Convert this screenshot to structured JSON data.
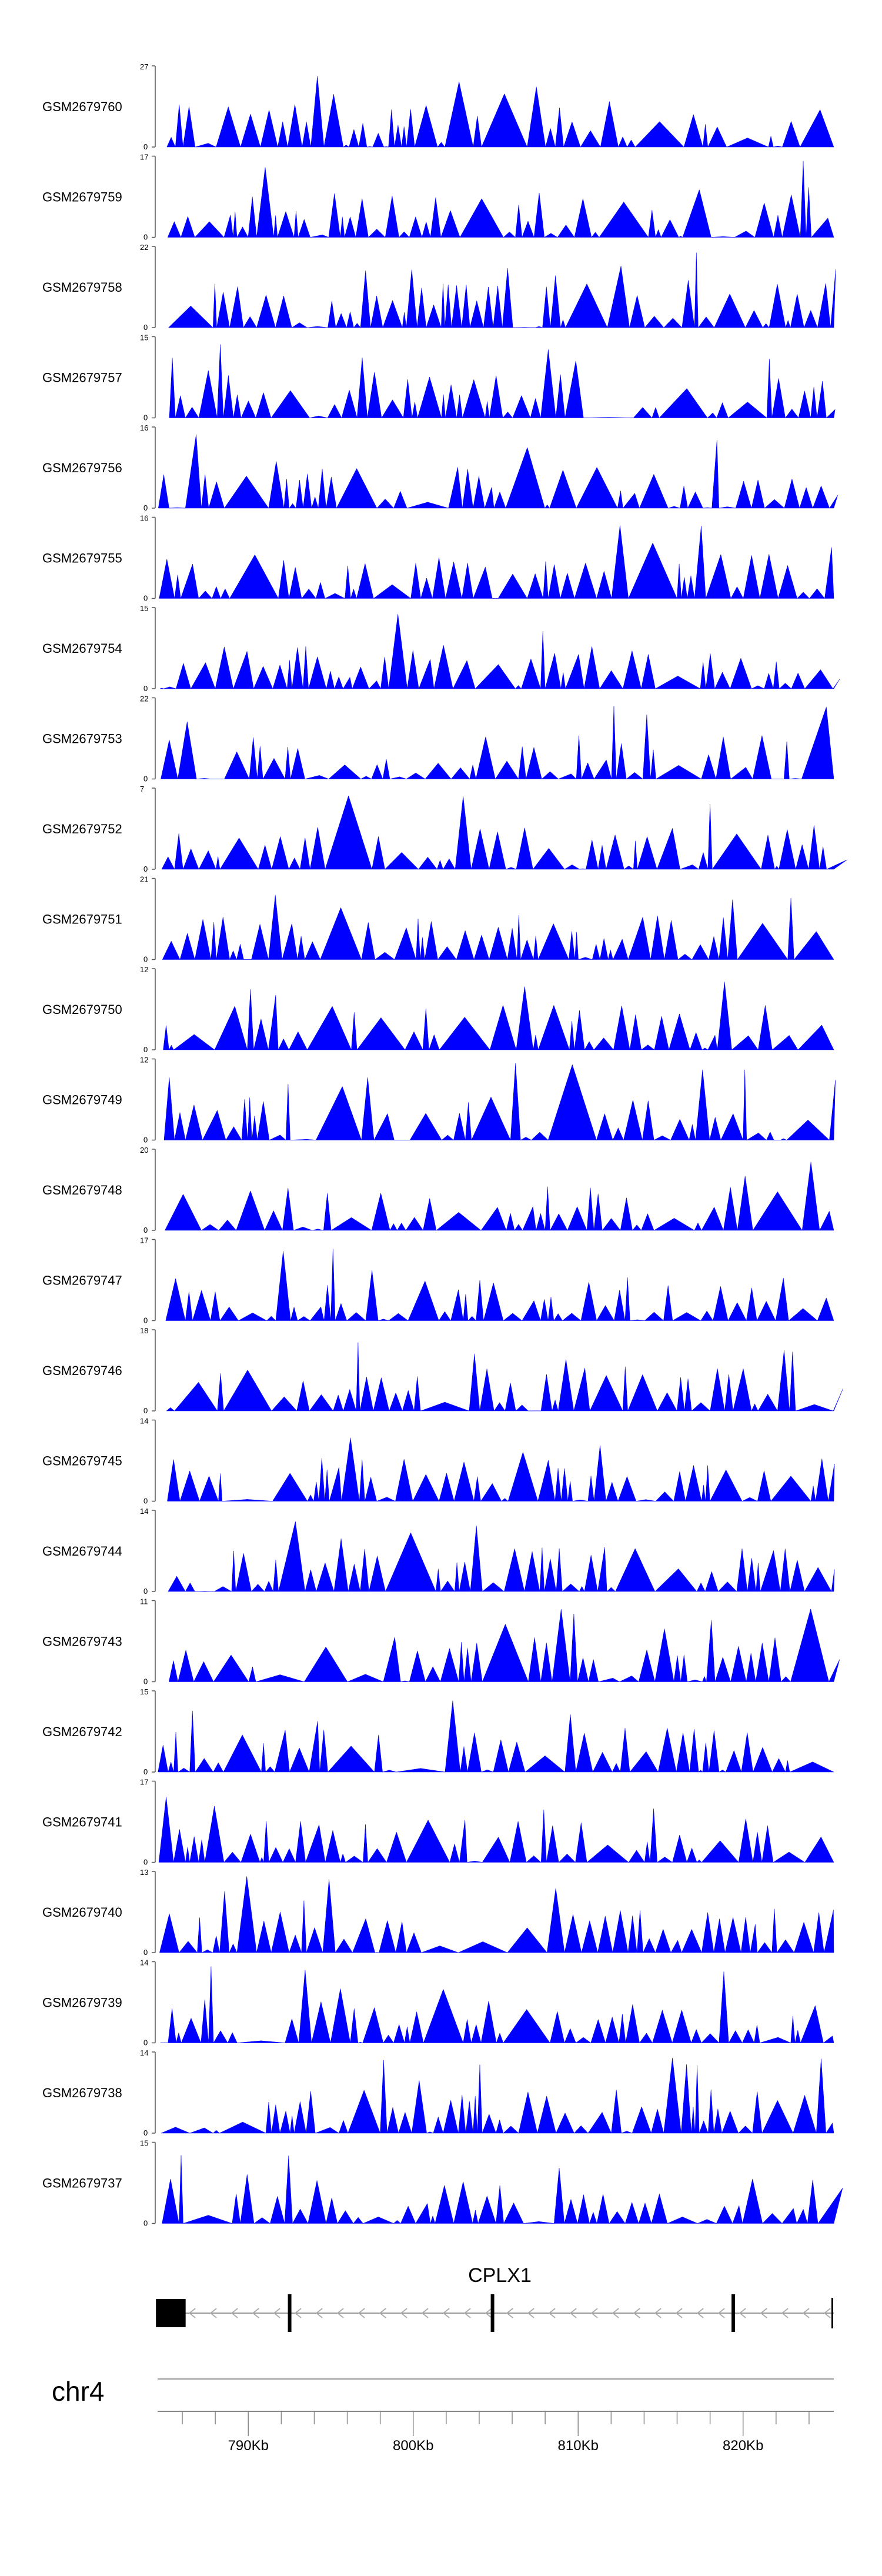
{
  "chart_data": {
    "type": "area",
    "title": "",
    "x_range": [
      784500,
      825500
    ],
    "x_unit": "bp",
    "tracks": [
      {
        "name": "GSM2679760",
        "ymax": 27
      },
      {
        "name": "GSM2679759",
        "ymax": 17
      },
      {
        "name": "GSM2679758",
        "ymax": 22
      },
      {
        "name": "GSM2679757",
        "ymax": 15
      },
      {
        "name": "GSM2679756",
        "ymax": 16
      },
      {
        "name": "GSM2679755",
        "ymax": 16
      },
      {
        "name": "GSM2679754",
        "ymax": 15
      },
      {
        "name": "GSM2679753",
        "ymax": 22
      },
      {
        "name": "GSM2679752",
        "ymax": 7
      },
      {
        "name": "GSM2679751",
        "ymax": 21
      },
      {
        "name": "GSM2679750",
        "ymax": 12
      },
      {
        "name": "GSM2679749",
        "ymax": 12
      },
      {
        "name": "GSM2679748",
        "ymax": 20
      },
      {
        "name": "GSM2679747",
        "ymax": 17
      },
      {
        "name": "GSM2679746",
        "ymax": 18
      },
      {
        "name": "GSM2679745",
        "ymax": 14
      },
      {
        "name": "GSM2679744",
        "ymax": 14
      },
      {
        "name": "GSM2679743",
        "ymax": 11
      },
      {
        "name": "GSM2679742",
        "ymax": 15
      },
      {
        "name": "GSM2679741",
        "ymax": 17
      },
      {
        "name": "GSM2679740",
        "ymax": 13
      },
      {
        "name": "GSM2679739",
        "ymax": 14
      },
      {
        "name": "GSM2679738",
        "ymax": 14
      },
      {
        "name": "GSM2679737",
        "ymax": 15
      }
    ],
    "y_min_label": "0",
    "gene": {
      "name": "CPLX1",
      "strand": "-",
      "start": 784400,
      "end": 825500,
      "exons": [
        [
          784400,
          786200
        ],
        [
          792400,
          792600
        ],
        [
          804700,
          804900
        ],
        [
          819300,
          819500
        ]
      ]
    },
    "chromosome": "chr4",
    "axis_ticks": [
      {
        "pos": 790000,
        "label": "790Kb"
      },
      {
        "pos": 800000,
        "label": "800Kb"
      },
      {
        "pos": 810000,
        "label": "810Kb"
      },
      {
        "pos": 820000,
        "label": "820Kb"
      }
    ],
    "minor_tick_step": 2000,
    "color": "#0000ff"
  }
}
